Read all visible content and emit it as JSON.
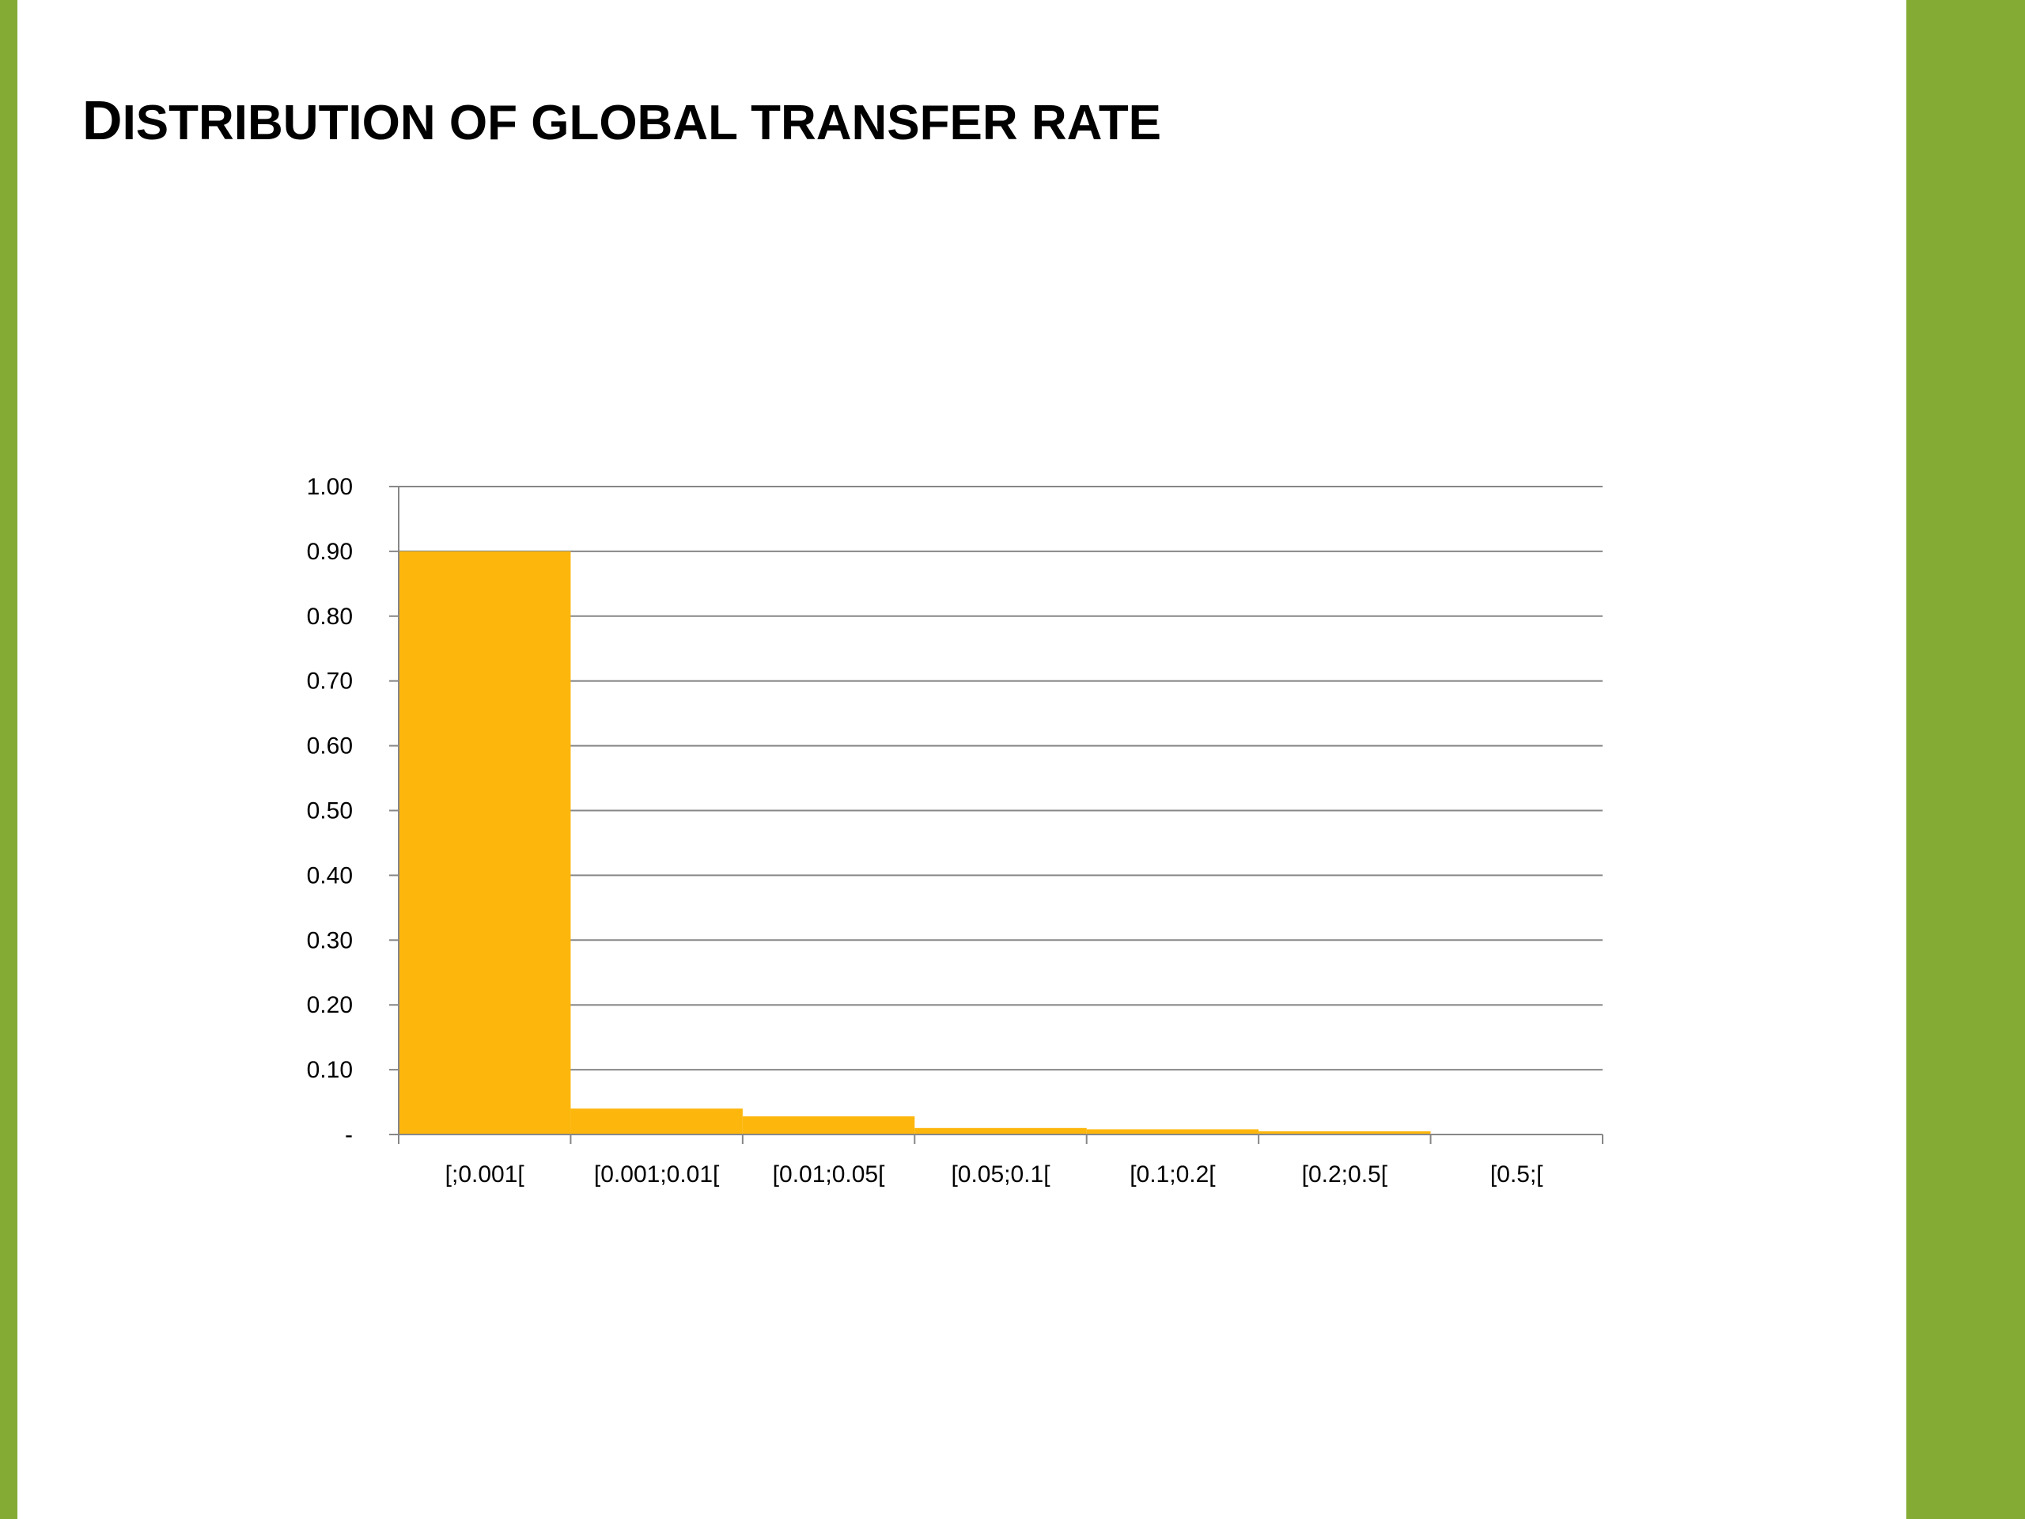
{
  "slide": {
    "title": "Distribution of global transfer rate",
    "accent_color": "#84ac35"
  },
  "chart_data": {
    "type": "bar",
    "title": "Distribution of global transfer rate",
    "xlabel": "",
    "ylabel": "",
    "categories": [
      "[;0.001[",
      "[0.001;0.01[",
      "[0.01;0.05[",
      "[0.05;0.1[",
      "[0.1;0.2[",
      "[0.2;0.5[",
      "[0.5;["
    ],
    "values": [
      0.9,
      0.04,
      0.028,
      0.01,
      0.008,
      0.005,
      0.0
    ],
    "ylim": [
      0,
      1.0
    ],
    "y_ticks": [
      0,
      0.1,
      0.2,
      0.3,
      0.4,
      0.5,
      0.6,
      0.7,
      0.8,
      0.9,
      1.0
    ],
    "y_tick_labels": [
      "-",
      "0.10",
      "0.20",
      "0.30",
      "0.40",
      "0.50",
      "0.60",
      "0.70",
      "0.80",
      "0.90",
      "1.00"
    ],
    "bar_color": "#fdb60c",
    "gridline_color": "#878787",
    "grid": true,
    "legend": "none"
  }
}
